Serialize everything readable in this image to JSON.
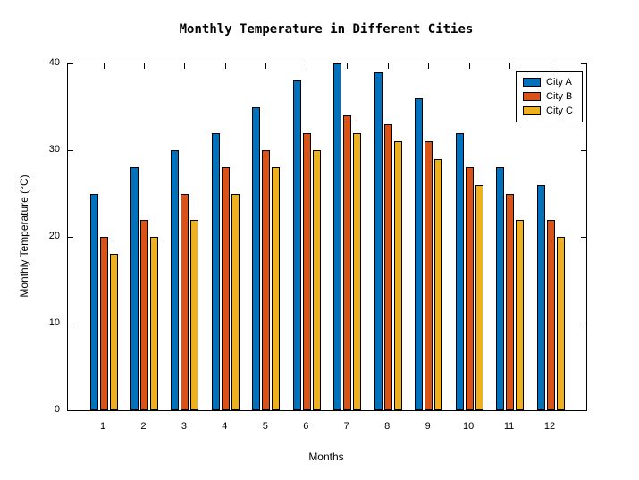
{
  "chart_data": {
    "type": "bar",
    "title": "Monthly Temperature in Different Cities",
    "xlabel": "Months",
    "ylabel": "Monthly Temperature (°C)",
    "categories": [
      "1",
      "2",
      "3",
      "4",
      "5",
      "6",
      "7",
      "8",
      "9",
      "10",
      "11",
      "12"
    ],
    "series": [
      {
        "name": "City A",
        "color": "#0072BD",
        "values": [
          25,
          28,
          30,
          32,
          35,
          38,
          40,
          39,
          36,
          32,
          28,
          26
        ]
      },
      {
        "name": "City B",
        "color": "#D95319",
        "values": [
          20,
          22,
          25,
          28,
          30,
          32,
          34,
          33,
          31,
          28,
          25,
          22
        ]
      },
      {
        "name": "City C",
        "color": "#EDB120",
        "values": [
          18,
          20,
          22,
          25,
          28,
          30,
          32,
          31,
          29,
          26,
          22,
          20
        ]
      }
    ],
    "ylim": [
      0,
      40
    ],
    "yticks": [
      0,
      10,
      20,
      30,
      40
    ],
    "legend": {
      "entries": [
        "City A",
        "City B",
        "City C"
      ],
      "position": "top-right"
    },
    "grid": false,
    "bar_edge_color": "#000000",
    "axis_color": "#000000",
    "background_color": "#FFFFFF"
  }
}
